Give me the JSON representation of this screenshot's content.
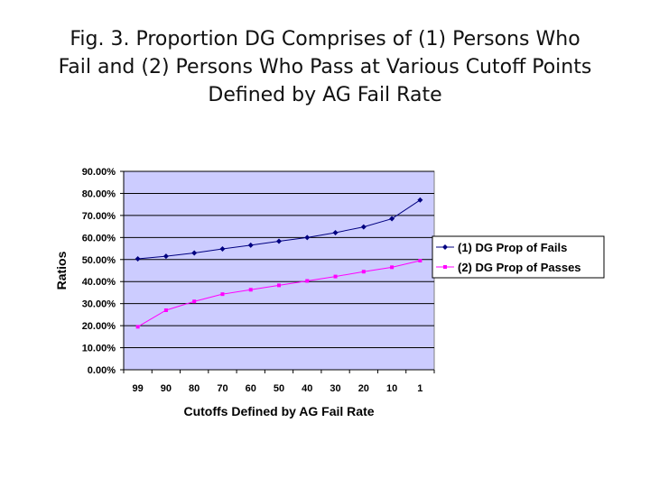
{
  "title_lines": [
    "Fig. 3. Proportion DG Comprises of (1) Persons Who",
    "Fail and (2) Persons Who Pass at Various Cutoff Points",
    "Defined by AG Fail Rate"
  ],
  "chart_data": {
    "type": "line",
    "title": "Fig. 3. Proportion DG Comprises of (1) Persons Who Fail and (2) Persons Who Pass at Various Cutoff Points Defined by AG Fail Rate",
    "xlabel": "Cutoffs Defined by AG Fail Rate",
    "ylabel": "Ratios",
    "categories": [
      "99",
      "90",
      "80",
      "70",
      "60",
      "50",
      "40",
      "30",
      "20",
      "10",
      "1"
    ],
    "yticks": [
      "0.00%",
      "10.00%",
      "20.00%",
      "30.00%",
      "40.00%",
      "50.00%",
      "60.00%",
      "70.00%",
      "80.00%",
      "90.00%"
    ],
    "ylim": [
      0,
      90
    ],
    "grid": true,
    "legend_position": "right",
    "plot_background": "#ccccff",
    "series": [
      {
        "name": "(1) DG Prop of Fails",
        "color": "#000080",
        "marker": "diamond",
        "values": [
          50.3,
          51.5,
          53.0,
          54.8,
          56.5,
          58.3,
          60.0,
          62.2,
          64.8,
          68.5,
          77.0
        ]
      },
      {
        "name": "(2) DG Prop of Passes",
        "color": "#ff00ff",
        "marker": "square",
        "values": [
          19.5,
          27.0,
          31.0,
          34.3,
          36.3,
          38.3,
          40.3,
          42.3,
          44.5,
          46.5,
          49.5
        ]
      }
    ]
  }
}
